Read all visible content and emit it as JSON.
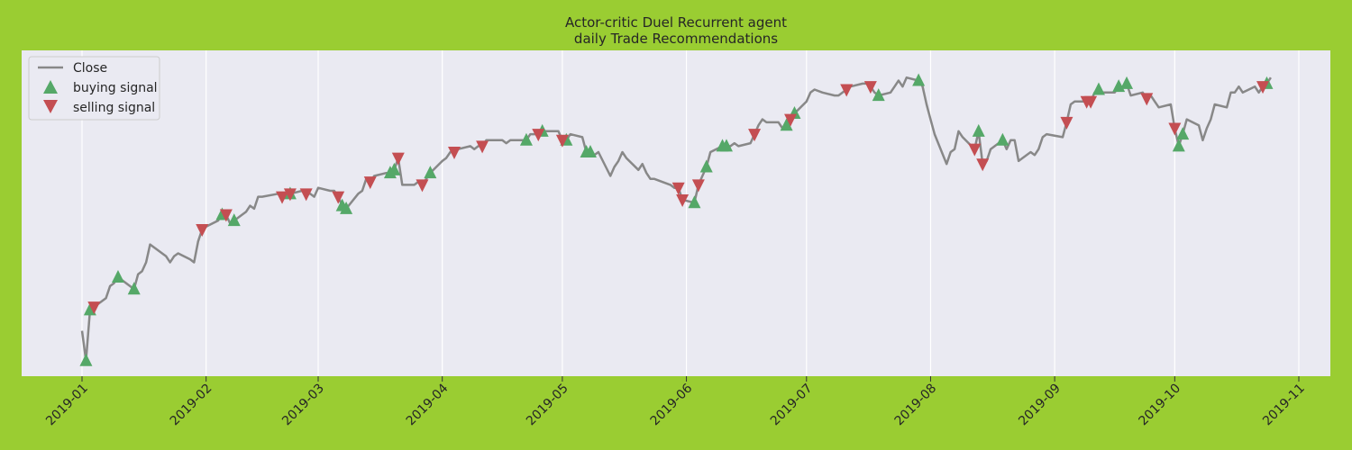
{
  "chart_data": {
    "type": "line",
    "title": "Actor-critic Duel Recurrent agent",
    "subtitle": "daily Trade Recommendations",
    "xlabel": "",
    "ylabel": "",
    "x_start": "2018-12-31",
    "x_end": "2019-11-04",
    "grid": true,
    "legend_position": "top-left",
    "x_ticks": [
      "2019-01",
      "2019-02",
      "2019-03",
      "2019-04",
      "2019-05",
      "2019-06",
      "2019-07",
      "2019-08",
      "2019-09",
      "2019-10",
      "2019-11"
    ],
    "y_range": [
      0,
      100
    ],
    "series": [
      {
        "name": "Close",
        "color": "#888888",
        "points": [
          [
            "2019-01-01",
            11
          ],
          [
            "2019-01-02",
            1
          ],
          [
            "2019-01-03",
            18
          ],
          [
            "2019-01-04",
            19
          ],
          [
            "2019-01-07",
            22
          ],
          [
            "2019-01-08",
            26
          ],
          [
            "2019-01-09",
            27
          ],
          [
            "2019-01-10",
            29
          ],
          [
            "2019-01-11",
            28
          ],
          [
            "2019-01-14",
            25
          ],
          [
            "2019-01-15",
            30
          ],
          [
            "2019-01-16",
            31
          ],
          [
            "2019-01-17",
            34
          ],
          [
            "2019-01-18",
            40
          ],
          [
            "2019-01-22",
            36
          ],
          [
            "2019-01-23",
            34
          ],
          [
            "2019-01-24",
            36
          ],
          [
            "2019-01-25",
            37
          ],
          [
            "2019-01-28",
            35
          ],
          [
            "2019-01-29",
            34
          ],
          [
            "2019-01-30",
            41
          ],
          [
            "2019-01-31",
            45
          ],
          [
            "2019-02-01",
            46
          ],
          [
            "2019-02-04",
            48
          ],
          [
            "2019-02-05",
            50
          ],
          [
            "2019-02-06",
            50
          ],
          [
            "2019-02-07",
            47
          ],
          [
            "2019-02-08",
            48
          ],
          [
            "2019-02-11",
            51
          ],
          [
            "2019-02-12",
            53
          ],
          [
            "2019-02-13",
            52
          ],
          [
            "2019-02-14",
            56
          ],
          [
            "2019-02-15",
            56
          ],
          [
            "2019-02-19",
            57
          ],
          [
            "2019-02-20",
            56
          ],
          [
            "2019-02-21",
            57
          ],
          [
            "2019-02-22",
            57
          ],
          [
            "2019-02-25",
            58
          ],
          [
            "2019-02-26",
            57
          ],
          [
            "2019-02-27",
            57
          ],
          [
            "2019-02-28",
            56
          ],
          [
            "2019-03-01",
            59
          ],
          [
            "2019-03-04",
            58
          ],
          [
            "2019-03-05",
            58
          ],
          [
            "2019-03-06",
            56
          ],
          [
            "2019-03-07",
            53
          ],
          [
            "2019-03-08",
            52
          ],
          [
            "2019-03-11",
            57
          ],
          [
            "2019-03-12",
            58
          ],
          [
            "2019-03-13",
            62
          ],
          [
            "2019-03-14",
            61
          ],
          [
            "2019-03-15",
            63
          ],
          [
            "2019-03-18",
            64
          ],
          [
            "2019-03-19",
            64
          ],
          [
            "2019-03-20",
            65
          ],
          [
            "2019-03-21",
            69
          ],
          [
            "2019-03-22",
            60
          ],
          [
            "2019-03-25",
            60
          ],
          [
            "2019-03-26",
            61
          ],
          [
            "2019-03-27",
            60
          ],
          [
            "2019-03-28",
            62
          ],
          [
            "2019-03-29",
            64
          ],
          [
            "2019-04-01",
            68
          ],
          [
            "2019-04-02",
            69
          ],
          [
            "2019-04-03",
            71
          ],
          [
            "2019-04-04",
            71
          ],
          [
            "2019-04-05",
            72
          ],
          [
            "2019-04-08",
            73
          ],
          [
            "2019-04-09",
            72
          ],
          [
            "2019-04-10",
            73
          ],
          [
            "2019-04-11",
            73
          ],
          [
            "2019-04-12",
            75
          ],
          [
            "2019-04-15",
            75
          ],
          [
            "2019-04-16",
            75
          ],
          [
            "2019-04-17",
            74
          ],
          [
            "2019-04-18",
            75
          ],
          [
            "2019-04-22",
            75
          ],
          [
            "2019-04-23",
            77
          ],
          [
            "2019-04-24",
            77
          ],
          [
            "2019-04-25",
            77
          ],
          [
            "2019-04-26",
            78
          ],
          [
            "2019-04-29",
            78
          ],
          [
            "2019-04-30",
            78
          ],
          [
            "2019-05-01",
            75
          ],
          [
            "2019-05-02",
            75
          ],
          [
            "2019-05-03",
            77
          ],
          [
            "2019-05-06",
            76
          ],
          [
            "2019-05-07",
            71
          ],
          [
            "2019-05-08",
            71
          ],
          [
            "2019-05-09",
            70
          ],
          [
            "2019-05-10",
            71
          ],
          [
            "2019-05-13",
            63
          ],
          [
            "2019-05-14",
            66
          ],
          [
            "2019-05-15",
            68
          ],
          [
            "2019-05-16",
            71
          ],
          [
            "2019-05-17",
            69
          ],
          [
            "2019-05-20",
            65
          ],
          [
            "2019-05-21",
            67
          ],
          [
            "2019-05-22",
            64
          ],
          [
            "2019-05-23",
            62
          ],
          [
            "2019-05-24",
            62
          ],
          [
            "2019-05-28",
            60
          ],
          [
            "2019-05-29",
            59
          ],
          [
            "2019-05-30",
            59
          ],
          [
            "2019-05-31",
            55
          ],
          [
            "2019-06-03",
            54
          ],
          [
            "2019-06-04",
            60
          ],
          [
            "2019-06-05",
            63
          ],
          [
            "2019-06-06",
            66
          ],
          [
            "2019-06-07",
            71
          ],
          [
            "2019-06-10",
            73
          ],
          [
            "2019-06-11",
            73
          ],
          [
            "2019-06-12",
            73
          ],
          [
            "2019-06-13",
            74
          ],
          [
            "2019-06-14",
            73
          ],
          [
            "2019-06-17",
            74
          ],
          [
            "2019-06-18",
            77
          ],
          [
            "2019-06-19",
            80
          ],
          [
            "2019-06-20",
            82
          ],
          [
            "2019-06-21",
            81
          ],
          [
            "2019-06-24",
            81
          ],
          [
            "2019-06-25",
            79
          ],
          [
            "2019-06-26",
            80
          ],
          [
            "2019-06-27",
            82
          ],
          [
            "2019-06-28",
            84
          ],
          [
            "2019-07-01",
            88
          ],
          [
            "2019-07-02",
            91
          ],
          [
            "2019-07-03",
            92
          ],
          [
            "2019-07-05",
            91
          ],
          [
            "2019-07-08",
            90
          ],
          [
            "2019-07-09",
            90
          ],
          [
            "2019-07-10",
            91
          ],
          [
            "2019-07-11",
            92
          ],
          [
            "2019-07-12",
            93
          ],
          [
            "2019-07-15",
            94
          ],
          [
            "2019-07-16",
            94
          ],
          [
            "2019-07-17",
            93
          ],
          [
            "2019-07-18",
            91
          ],
          [
            "2019-07-19",
            90
          ],
          [
            "2019-07-22",
            91
          ],
          [
            "2019-07-23",
            93
          ],
          [
            "2019-07-24",
            95
          ],
          [
            "2019-07-25",
            93
          ],
          [
            "2019-07-26",
            96
          ],
          [
            "2019-07-29",
            95
          ],
          [
            "2019-07-30",
            93
          ],
          [
            "2019-07-31",
            87
          ],
          [
            "2019-08-01",
            82
          ],
          [
            "2019-08-02",
            77
          ],
          [
            "2019-08-05",
            67
          ],
          [
            "2019-08-06",
            71
          ],
          [
            "2019-08-07",
            72
          ],
          [
            "2019-08-08",
            78
          ],
          [
            "2019-08-09",
            76
          ],
          [
            "2019-08-12",
            72
          ],
          [
            "2019-08-13",
            78
          ],
          [
            "2019-08-14",
            67
          ],
          [
            "2019-08-15",
            68
          ],
          [
            "2019-08-16",
            72
          ],
          [
            "2019-08-19",
            75
          ],
          [
            "2019-08-20",
            72
          ],
          [
            "2019-08-21",
            75
          ],
          [
            "2019-08-22",
            75
          ],
          [
            "2019-08-23",
            68
          ],
          [
            "2019-08-26",
            71
          ],
          [
            "2019-08-27",
            70
          ],
          [
            "2019-08-28",
            72
          ],
          [
            "2019-08-29",
            76
          ],
          [
            "2019-08-30",
            77
          ],
          [
            "2019-09-03",
            76
          ],
          [
            "2019-09-04",
            81
          ],
          [
            "2019-09-05",
            87
          ],
          [
            "2019-09-06",
            88
          ],
          [
            "2019-09-09",
            88
          ],
          [
            "2019-09-10",
            88
          ],
          [
            "2019-09-11",
            91
          ],
          [
            "2019-09-12",
            92
          ],
          [
            "2019-09-13",
            91
          ],
          [
            "2019-09-16",
            91
          ],
          [
            "2019-09-17",
            93
          ],
          [
            "2019-09-18",
            93
          ],
          [
            "2019-09-19",
            94
          ],
          [
            "2019-09-20",
            90
          ],
          [
            "2019-09-23",
            91
          ],
          [
            "2019-09-24",
            89
          ],
          [
            "2019-09-25",
            90
          ],
          [
            "2019-09-26",
            88
          ],
          [
            "2019-09-27",
            86
          ],
          [
            "2019-09-30",
            87
          ],
          [
            "2019-10-01",
            79
          ],
          [
            "2019-10-02",
            73
          ],
          [
            "2019-10-03",
            77
          ],
          [
            "2019-10-04",
            82
          ],
          [
            "2019-10-07",
            80
          ],
          [
            "2019-10-08",
            75
          ],
          [
            "2019-10-09",
            79
          ],
          [
            "2019-10-10",
            82
          ],
          [
            "2019-10-11",
            87
          ],
          [
            "2019-10-14",
            86
          ],
          [
            "2019-10-15",
            91
          ],
          [
            "2019-10-16",
            91
          ],
          [
            "2019-10-17",
            93
          ],
          [
            "2019-10-18",
            91
          ],
          [
            "2019-10-21",
            93
          ],
          [
            "2019-10-22",
            91
          ],
          [
            "2019-10-23",
            93
          ],
          [
            "2019-10-24",
            94
          ],
          [
            "2019-10-25",
            96
          ]
        ]
      }
    ],
    "buy_signals": {
      "name": "buying signal",
      "color": "#55a868",
      "dates": [
        "2019-01-02",
        "2019-01-03",
        "2019-01-10",
        "2019-01-14",
        "2019-02-05",
        "2019-02-08",
        "2019-02-22",
        "2019-03-07",
        "2019-03-08",
        "2019-03-19",
        "2019-03-20",
        "2019-03-29",
        "2019-04-22",
        "2019-04-26",
        "2019-05-02",
        "2019-05-07",
        "2019-05-08",
        "2019-06-03",
        "2019-06-06",
        "2019-06-10",
        "2019-06-11",
        "2019-06-26",
        "2019-06-28",
        "2019-07-19",
        "2019-07-29",
        "2019-08-13",
        "2019-08-19",
        "2019-09-12",
        "2019-09-17",
        "2019-09-19",
        "2019-10-02",
        "2019-10-03",
        "2019-10-24"
      ]
    },
    "sell_signals": {
      "name": "selling signal",
      "color": "#c44e52",
      "dates": [
        "2019-01-04",
        "2019-01-31",
        "2019-02-06",
        "2019-02-20",
        "2019-02-22",
        "2019-02-26",
        "2019-03-06",
        "2019-03-14",
        "2019-03-21",
        "2019-03-27",
        "2019-04-04",
        "2019-04-11",
        "2019-04-25",
        "2019-05-01",
        "2019-05-30",
        "2019-05-31",
        "2019-06-04",
        "2019-06-18",
        "2019-06-27",
        "2019-07-11",
        "2019-07-17",
        "2019-08-12",
        "2019-08-14",
        "2019-09-04",
        "2019-09-09",
        "2019-09-10",
        "2019-09-24",
        "2019-10-01",
        "2019-10-23"
      ]
    }
  }
}
